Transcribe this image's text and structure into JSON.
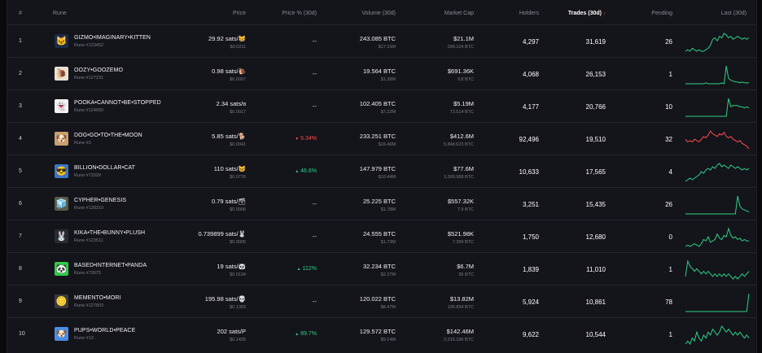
{
  "headers": {
    "idx": "#",
    "rune": "Rune",
    "price": "Price",
    "pct": "Price % (30d)",
    "volume": "Volume (30d)",
    "cap": "Market Cap",
    "holders": "Holders",
    "trades": "Trades (30d)",
    "pending": "Pending",
    "last": "Last (30d)"
  },
  "colors": {
    "up": "#2fd083",
    "down": "#ff4d4d"
  },
  "rows": [
    {
      "idx": "1",
      "name": "GIZMO•IMAGINARY•KITTEN",
      "rune_id": "Rune #123452",
      "price": "29.92 sats/😸",
      "price_usd": "$0.0211",
      "pct": "--",
      "pct_dir": "none",
      "vol": "243.085 BTC",
      "vol_usd": "$17.15M",
      "cap": "$21.1M",
      "cap_btc": "299.124 BTC",
      "holders": "4,297",
      "trades": "31,619",
      "pending": "26",
      "trend": "up",
      "icon": "cat-avatar-icon",
      "avatar_bg": "#1b2a4a",
      "avatar_glyph": "🐱",
      "spark": [
        10,
        11,
        10,
        12,
        11,
        10,
        11,
        10,
        10,
        11,
        12,
        14,
        18,
        19,
        17,
        20,
        19,
        22,
        21,
        19,
        20,
        18,
        19,
        20,
        19,
        18,
        19,
        18,
        19
      ]
    },
    {
      "idx": "2",
      "name": "OOZY•GOOZEMO",
      "rune_id": "Rune #127231",
      "price": "0.98 sats/🐌",
      "price_usd": "$0.0007",
      "pct": "--",
      "pct_dir": "none",
      "vol": "19.564 BTC",
      "vol_usd": "$1.38M",
      "cap": "$691.36K",
      "cap_btc": "9.8 BTC",
      "holders": "4,068",
      "trades": "26,153",
      "pending": "1",
      "trend": "up",
      "icon": "snail-avatar-icon",
      "avatar_bg": "#e9e2d2",
      "avatar_glyph": "🐌",
      "spark": [
        4,
        4,
        4,
        4,
        4,
        4,
        4,
        4,
        4,
        5,
        4,
        4,
        4,
        4,
        4,
        4,
        5,
        4,
        24,
        10,
        8,
        7,
        6,
        6,
        5,
        6,
        5,
        5,
        5
      ]
    },
    {
      "idx": "3",
      "name": "POOKA•CANNOT•BE•STOPPED",
      "rune_id": "Rune #124650",
      "price": "2.34 sats/ɞ",
      "price_usd": "$0.0017",
      "pct": "--",
      "pct_dir": "none",
      "vol": "102.405 BTC",
      "vol_usd": "$7.22M",
      "cap": "$5.19M",
      "cap_btc": "73.514 BTC",
      "holders": "4,177",
      "trades": "20,766",
      "pending": "10",
      "trend": "up",
      "icon": "pooka-avatar-icon",
      "avatar_bg": "#f2f2f2",
      "avatar_glyph": "👻",
      "spark": [
        3,
        3,
        3,
        3,
        3,
        3,
        3,
        3,
        3,
        3,
        3,
        3,
        3,
        3,
        3,
        3,
        3,
        3,
        3,
        18,
        11,
        12,
        12,
        12,
        11,
        11,
        10,
        11,
        10
      ]
    },
    {
      "idx": "4",
      "name": "DOG•GO•TO•THE•MOON",
      "rune_id": "Rune #3",
      "price": "5.85 sats/🐕",
      "price_usd": "$0.0041",
      "pct": "5.34%",
      "pct_dir": "down",
      "vol": "233.251 BTC",
      "vol_usd": "$16.46M",
      "cap": "$412.6M",
      "cap_btc": "5,848.623 BTC",
      "holders": "92,496",
      "trades": "19,510",
      "pending": "32",
      "trend": "down",
      "icon": "dog-avatar-icon",
      "avatar_bg": "#c8a070",
      "avatar_glyph": "🐶",
      "spark": [
        14,
        12,
        13,
        12,
        14,
        13,
        12,
        14,
        16,
        15,
        17,
        20,
        18,
        17,
        16,
        18,
        17,
        19,
        16,
        15,
        16,
        14,
        13,
        12,
        13,
        11,
        10,
        9,
        7
      ]
    },
    {
      "idx": "5",
      "name": "BILLION•DOLLAR•CAT",
      "rune_id": "Rune #72029",
      "price": "110 sats/😺",
      "price_usd": "$0.0776",
      "pct": "46.6%",
      "pct_dir": "up",
      "vol": "147.979 BTC",
      "vol_usd": "$10.44M",
      "cap": "$77.6M",
      "cap_btc": "1,099.968 BTC",
      "holders": "10,633",
      "trades": "17,565",
      "pending": "4",
      "trend": "up",
      "icon": "cat-glasses-avatar-icon",
      "avatar_bg": "#3a76c8",
      "avatar_glyph": "😎",
      "spark": [
        8,
        9,
        10,
        9,
        10,
        11,
        12,
        14,
        13,
        15,
        16,
        15,
        17,
        16,
        18,
        19,
        17,
        18,
        17,
        16,
        18,
        17,
        16,
        17,
        16,
        15,
        16,
        15,
        16
      ]
    },
    {
      "idx": "6",
      "name": "CYPHER•GENESIS",
      "rune_id": "Rune #128310",
      "price": "0.79 sats/🗃",
      "price_usd": "$0.0006",
      "pct": "--",
      "pct_dir": "none",
      "vol": "25.225 BTC",
      "vol_usd": "$1.78M",
      "cap": "$557.32K",
      "cap_btc": "7.9 BTC",
      "holders": "3,251",
      "trades": "15,435",
      "pending": "26",
      "trend": "up",
      "icon": "cube-avatar-icon",
      "avatar_bg": "#5a5a46",
      "avatar_glyph": "🧊",
      "spark": [
        4,
        4,
        4,
        4,
        4,
        4,
        4,
        4,
        4,
        4,
        4,
        4,
        4,
        4,
        4,
        4,
        4,
        4,
        4,
        4,
        4,
        4,
        4,
        22,
        12,
        9,
        8,
        7,
        6
      ]
    },
    {
      "idx": "7",
      "name": "KIKA•THE•BUNNY•PLUSH",
      "rune_id": "Rune #123511",
      "price": "0.739899 sats/🐰",
      "price_usd": "$0.0005",
      "pct": "--",
      "pct_dir": "none",
      "vol": "24.555 BTC",
      "vol_usd": "$1.73M",
      "cap": "$521.98K",
      "cap_btc": "7.399 BTC",
      "holders": "1,750",
      "trades": "12,680",
      "pending": "0",
      "trend": "up",
      "icon": "bunny-avatar-icon",
      "avatar_bg": "#2a2a34",
      "avatar_glyph": "🐰",
      "spark": [
        5,
        6,
        5,
        6,
        7,
        6,
        5,
        7,
        10,
        9,
        12,
        8,
        9,
        10,
        14,
        11,
        10,
        13,
        12,
        18,
        13,
        11,
        12,
        10,
        11,
        9,
        10,
        9,
        9
      ]
    },
    {
      "idx": "8",
      "name": "BASED•INTERNET•PANDA",
      "rune_id": "Rune #73075",
      "price": "19 sats/🐼",
      "price_usd": "$0.0134",
      "pct": "112%",
      "pct_dir": "up",
      "vol": "32.234 BTC",
      "vol_usd": "$2.27M",
      "cap": "$6.7M",
      "cap_btc": "95 BTC",
      "holders": "1,839",
      "trades": "11,010",
      "pending": "1",
      "trend": "up",
      "icon": "panda-avatar-icon",
      "avatar_bg": "#2ecc4a",
      "avatar_glyph": "🐼",
      "spark": [
        14,
        20,
        18,
        17,
        16,
        17,
        16,
        15,
        16,
        15,
        16,
        15,
        14,
        15,
        14,
        15,
        14,
        15,
        14,
        15,
        14,
        13,
        14,
        13,
        14,
        15,
        14,
        15,
        16
      ]
    },
    {
      "idx": "9",
      "name": "MEMENTO•MORI",
      "rune_id": "Rune #127803",
      "price": "195.98 sats/💀",
      "price_usd": "$0.1383",
      "pct": "--",
      "pct_dir": "none",
      "vol": "120.022 BTC",
      "vol_usd": "$8.47M",
      "cap": "$13.82M",
      "cap_btc": "195.894 BTC",
      "holders": "5,924",
      "trades": "10,861",
      "pending": "78",
      "trend": "up",
      "icon": "coin-avatar-icon",
      "avatar_bg": "#3a3a3a",
      "avatar_glyph": "🪙",
      "spark": [
        3,
        3,
        3,
        3,
        3,
        3,
        3,
        3,
        3,
        3,
        3,
        3,
        3,
        3,
        3,
        3,
        3,
        3,
        3,
        3,
        3,
        3,
        3,
        3,
        3,
        3,
        3,
        3,
        20
      ]
    },
    {
      "idx": "10",
      "name": "PUPS•WORLD•PEACE",
      "rune_id": "Rune #13",
      "price": "202 sats/P",
      "price_usd": "$0.1425",
      "pct": "89.7%",
      "pct_dir": "up",
      "vol": "129.572 BTC",
      "vol_usd": "$9.14M",
      "cap": "$142.46M",
      "cap_btc": "2,015.336 BTC",
      "holders": "9,622",
      "trades": "10,544",
      "pending": "1",
      "trend": "up",
      "icon": "pup-avatar-icon",
      "avatar_bg": "#4a8ee6",
      "avatar_glyph": "🐶",
      "spark": [
        8,
        9,
        8,
        10,
        9,
        12,
        10,
        9,
        11,
        10,
        12,
        11,
        13,
        12,
        11,
        12,
        14,
        13,
        12,
        13,
        12,
        11,
        12,
        11,
        12,
        11,
        10,
        11,
        10
      ]
    }
  ]
}
